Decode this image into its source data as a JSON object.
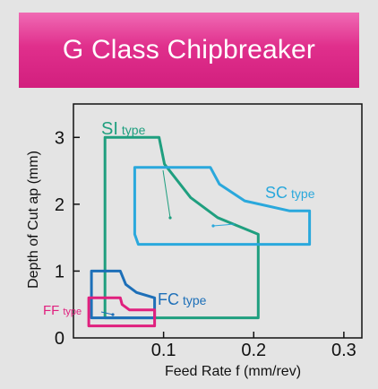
{
  "title": "G Class Chipbreaker",
  "colors": {
    "background": "#e4e4e4",
    "banner": "#e02f8c",
    "banner_text": "#ffffff",
    "axis": "#111111"
  },
  "chart_data": {
    "type": "area",
    "title": "G Class Chipbreaker",
    "xlabel": "Feed Rate f (mm/rev)",
    "ylabel": "Depth of Cut ap (mm)",
    "xlim": [
      0,
      0.32
    ],
    "ylim": [
      0,
      3.5
    ],
    "x_ticks": [
      {
        "value": 0.1,
        "label": "0.1"
      },
      {
        "value": 0.2,
        "label": "0.2"
      },
      {
        "value": 0.3,
        "label": "0.3"
      }
    ],
    "y_ticks": [
      {
        "value": 0,
        "label": "0"
      },
      {
        "value": 1,
        "label": "1"
      },
      {
        "value": 2,
        "label": "2"
      },
      {
        "value": 3,
        "label": "3"
      }
    ],
    "grid": false,
    "legend": "inline labels",
    "series": [
      {
        "name": "SI type",
        "label_main": "SI",
        "label_sub": "type",
        "color": "#1f9f7f",
        "region": [
          [
            0.035,
            0.3
          ],
          [
            0.035,
            3.0
          ],
          [
            0.095,
            3.0
          ],
          [
            0.101,
            2.6
          ],
          [
            0.13,
            2.1
          ],
          [
            0.16,
            1.8
          ],
          [
            0.205,
            1.55
          ],
          [
            0.205,
            0.3
          ]
        ]
      },
      {
        "name": "SC type",
        "label_main": "SC",
        "label_sub": "type",
        "color": "#2aa8dc",
        "region": [
          [
            0.068,
            2.55
          ],
          [
            0.152,
            2.55
          ],
          [
            0.162,
            2.3
          ],
          [
            0.19,
            2.05
          ],
          [
            0.24,
            1.9
          ],
          [
            0.262,
            1.9
          ],
          [
            0.262,
            1.4
          ],
          [
            0.072,
            1.4
          ],
          [
            0.068,
            1.55
          ]
        ]
      },
      {
        "name": "FC type",
        "label_main": "FC",
        "label_sub": "type",
        "color": "#1d6fb8",
        "region": [
          [
            0.02,
            0.3
          ],
          [
            0.02,
            1.0
          ],
          [
            0.052,
            1.0
          ],
          [
            0.058,
            0.8
          ],
          [
            0.07,
            0.68
          ],
          [
            0.09,
            0.6
          ],
          [
            0.09,
            0.3
          ]
        ]
      },
      {
        "name": "FF type",
        "label_main": "FF",
        "label_sub": "type",
        "color": "#e0207e",
        "region": [
          [
            0.017,
            0.18
          ],
          [
            0.017,
            0.6
          ],
          [
            0.052,
            0.6
          ],
          [
            0.054,
            0.5
          ],
          [
            0.062,
            0.42
          ],
          [
            0.09,
            0.42
          ],
          [
            0.09,
            0.18
          ]
        ]
      }
    ]
  }
}
